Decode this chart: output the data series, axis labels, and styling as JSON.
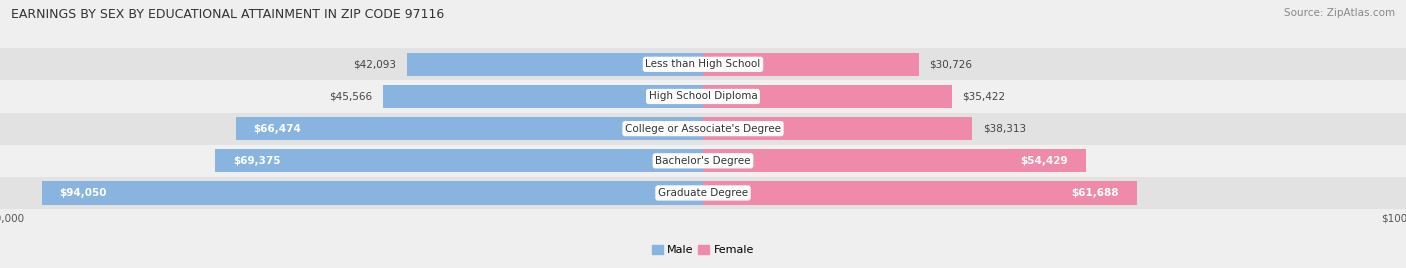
{
  "title": "EARNINGS BY SEX BY EDUCATIONAL ATTAINMENT IN ZIP CODE 97116",
  "source": "Source: ZipAtlas.com",
  "categories": [
    "Less than High School",
    "High School Diploma",
    "College or Associate's Degree",
    "Bachelor's Degree",
    "Graduate Degree"
  ],
  "male_values": [
    42093,
    45566,
    66474,
    69375,
    94050
  ],
  "female_values": [
    30726,
    35422,
    38313,
    54429,
    61688
  ],
  "male_color": "#8ab4e0",
  "female_color": "#f08aaa",
  "max_value": 100000,
  "bg_color": "#efefef",
  "row_colors": [
    "#e2e2e2",
    "#f0f0f0"
  ],
  "title_fontsize": 9,
  "source_fontsize": 7.5,
  "label_fontsize": 7.5,
  "category_fontsize": 7.5,
  "axis_label_fontsize": 7.5
}
